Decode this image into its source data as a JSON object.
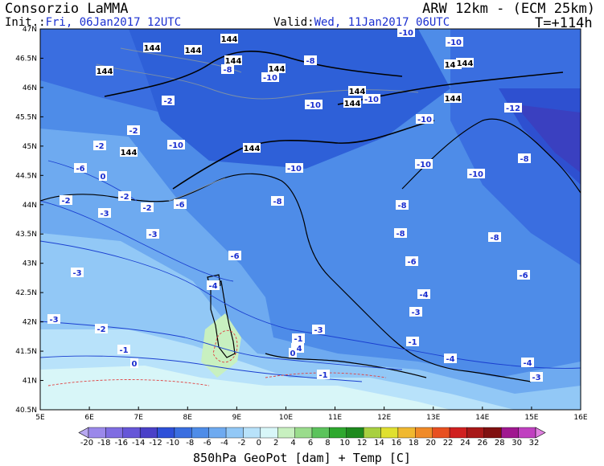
{
  "header": {
    "org": "Consorzio LaMMA",
    "init_label": "Init.:",
    "init_value": "Fri, 06Jan2017 12UTC",
    "valid_label": "Valid:",
    "valid_value": "Wed, 11Jan2017 06UTC",
    "model": "ARW 12km - (ECM 25km)",
    "step": "T=+114h"
  },
  "axes": {
    "lat_labels": [
      "47N",
      "46.5N",
      "46N",
      "45.5N",
      "45N",
      "44.5N",
      "44N",
      "43.5N",
      "43N",
      "42.5N",
      "42N",
      "41.5N",
      "41N",
      "40.5N"
    ],
    "lon_labels": [
      "5E",
      "6E",
      "7E",
      "8E",
      "9E",
      "10E",
      "11E",
      "12E",
      "13E",
      "14E",
      "15E",
      "16E"
    ]
  },
  "colorbar": {
    "ticks": [
      "-20",
      "-18",
      "-16",
      "-14",
      "-12",
      "-10",
      "-8",
      "-6",
      "-4",
      "-2",
      "0",
      "2",
      "4",
      "6",
      "8",
      "10",
      "12",
      "14",
      "16",
      "18",
      "20",
      "22",
      "24",
      "26",
      "28",
      "30",
      "32"
    ],
    "colors": [
      "#b8a8f0",
      "#9a88ea",
      "#7f6de2",
      "#6656d8",
      "#4a40c8",
      "#2e50d8",
      "#3a6ee0",
      "#4e8ce8",
      "#6eaaf0",
      "#92c8f6",
      "#b8e2fa",
      "#d8f6f8",
      "#c8f0c0",
      "#9adc8c",
      "#5cc35c",
      "#2ea82e",
      "#1e8a1e",
      "#a8d040",
      "#e0e030",
      "#f0b830",
      "#f08a28",
      "#e85020",
      "#d02020",
      "#a81818",
      "#801010",
      "#a01890",
      "#c040c0",
      "#e080e0"
    ],
    "title": "850hPa GeoPot [dam] + Temp [C]"
  },
  "labels": {
    "geopot": [
      "144",
      "144",
      "144",
      "144",
      "144",
      "144",
      "144",
      "144",
      "144",
      "144",
      "144",
      "144",
      "144"
    ],
    "temp": [
      "-10",
      "-10",
      "-10",
      "-10",
      "-10",
      "-10",
      "-10",
      "-10",
      "-10",
      "-10",
      "-12",
      "-8",
      "-8",
      "-8",
      "-8",
      "-8",
      "-8",
      "-8",
      "-6",
      "-6",
      "-6",
      "-6",
      "-6",
      "-4",
      "-4",
      "-4",
      "-4",
      "-4",
      "-3",
      "-3",
      "-3",
      "-3",
      "-3",
      "-3",
      "-3",
      "-2",
      "-2",
      "-2",
      "-2",
      "-2",
      "-2",
      "-2",
      "-1",
      "-1",
      "-1",
      "-1",
      "0",
      "0",
      "0"
    ]
  }
}
